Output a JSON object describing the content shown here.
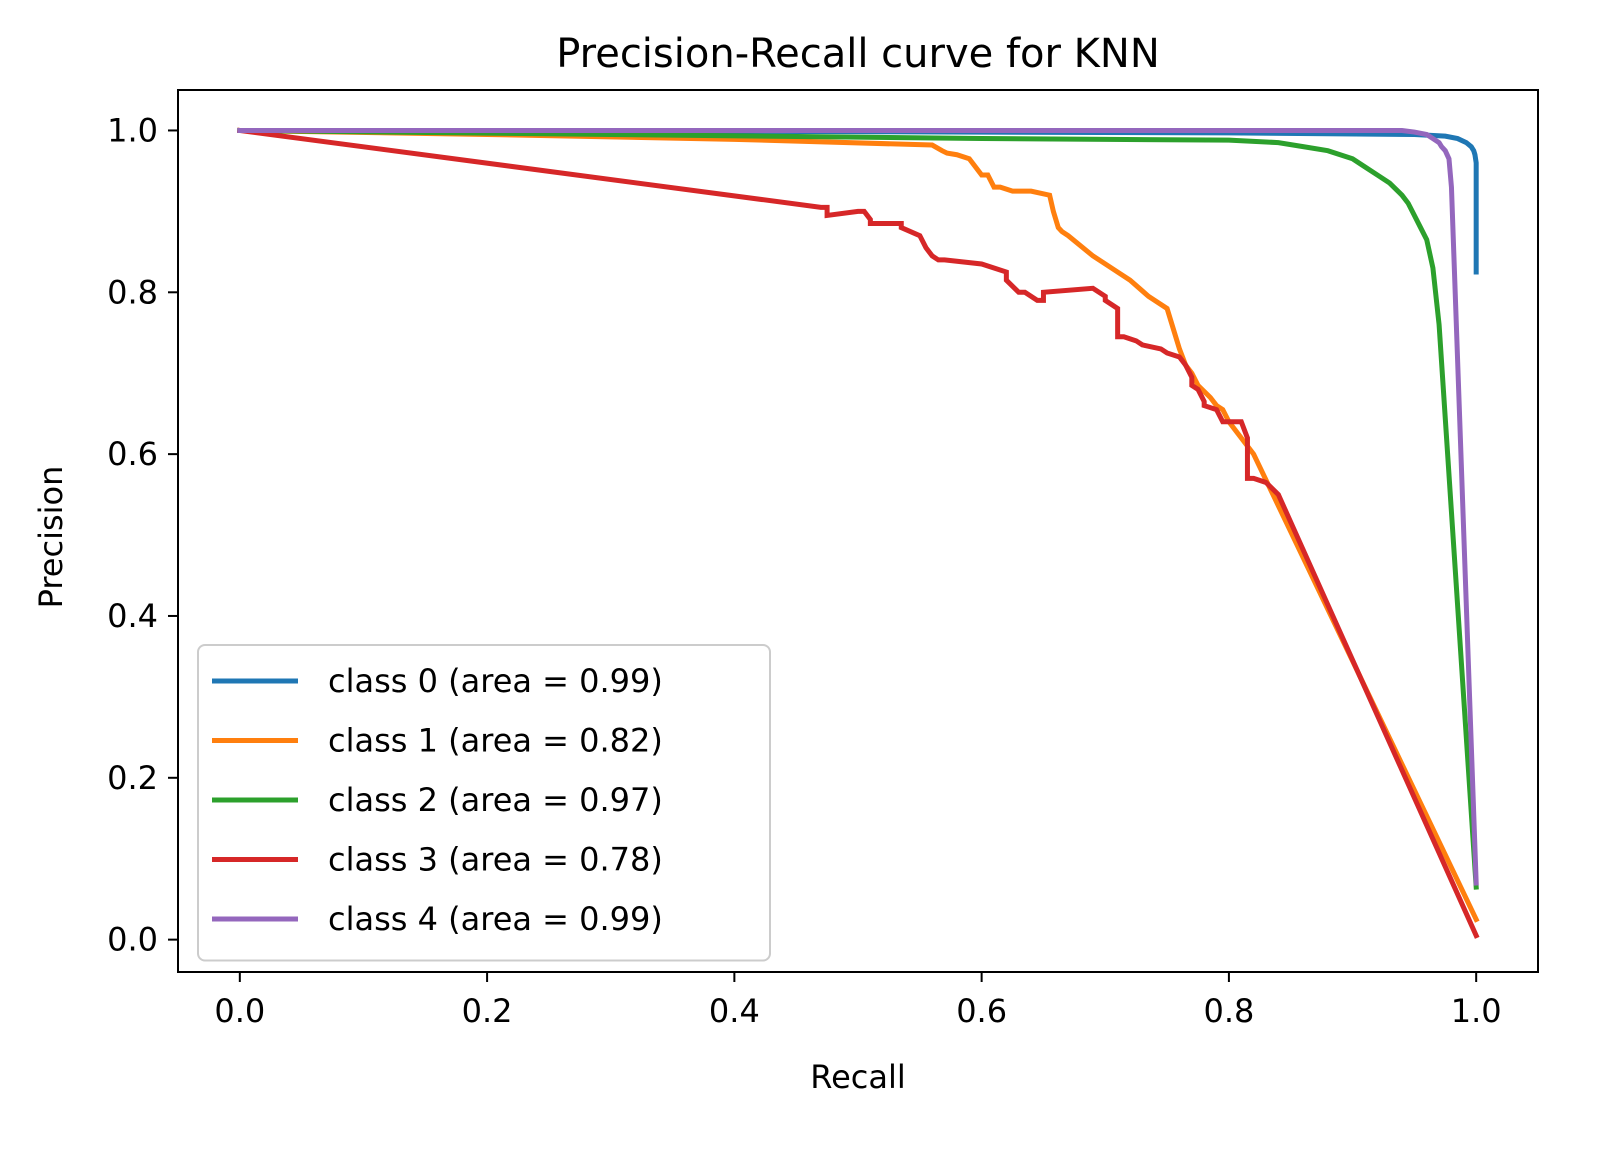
{
  "chart_data": {
    "type": "line",
    "title": "Precision-Recall curve for KNN",
    "xlabel": "Recall",
    "ylabel": "Precision",
    "xlim": [
      -0.05,
      1.05
    ],
    "ylim": [
      -0.04,
      1.05
    ],
    "xticks": [
      0.0,
      0.2,
      0.4,
      0.6,
      0.8,
      1.0
    ],
    "xtick_labels": [
      "0.0",
      "0.2",
      "0.4",
      "0.6",
      "0.8",
      "1.0"
    ],
    "yticks": [
      0.0,
      0.2,
      0.4,
      0.6,
      0.8,
      1.0
    ],
    "ytick_labels": [
      "0.0",
      "0.2",
      "0.4",
      "0.6",
      "0.8",
      "1.0"
    ],
    "grid": false,
    "legend_position": "lower-left",
    "series": [
      {
        "name": "class 0 (area = 0.99)",
        "color": "#1f77b4",
        "x": [
          0.0,
          0.2,
          0.4,
          0.6,
          0.8,
          0.95,
          0.975,
          0.985,
          0.992,
          0.996,
          0.998,
          0.999,
          1.0,
          1.0
        ],
        "y": [
          1.0,
          0.9995,
          0.999,
          0.998,
          0.997,
          0.995,
          0.993,
          0.99,
          0.985,
          0.98,
          0.975,
          0.97,
          0.96,
          0.825
        ]
      },
      {
        "name": "class 1 (area = 0.82)",
        "color": "#ff7f0e",
        "x": [
          0.0,
          0.2,
          0.4,
          0.56,
          0.568,
          0.572,
          0.58,
          0.59,
          0.6,
          0.605,
          0.61,
          0.615,
          0.625,
          0.64,
          0.655,
          0.658,
          0.662,
          0.665,
          0.67,
          0.69,
          0.7,
          0.71,
          0.72,
          0.735,
          0.75,
          0.755,
          0.76,
          0.765,
          0.77,
          0.775,
          0.785,
          0.79,
          0.795,
          0.8,
          0.82,
          1.0
        ],
        "y": [
          1.0,
          0.995,
          0.989,
          0.982,
          0.975,
          0.972,
          0.97,
          0.965,
          0.945,
          0.945,
          0.93,
          0.93,
          0.925,
          0.925,
          0.92,
          0.9,
          0.88,
          0.875,
          0.87,
          0.845,
          0.835,
          0.825,
          0.815,
          0.795,
          0.78,
          0.755,
          0.73,
          0.71,
          0.7,
          0.685,
          0.67,
          0.66,
          0.655,
          0.64,
          0.6,
          0.025
        ]
      },
      {
        "name": "class 2 (area = 0.97)",
        "color": "#2ca02c",
        "x": [
          0.0,
          0.3,
          0.6,
          0.8,
          0.84,
          0.86,
          0.88,
          0.9,
          0.91,
          0.92,
          0.93,
          0.94,
          0.945,
          0.95,
          0.955,
          0.96,
          0.965,
          0.97,
          1.0
        ],
        "y": [
          1.0,
          0.995,
          0.99,
          0.988,
          0.985,
          0.98,
          0.975,
          0.965,
          0.955,
          0.945,
          0.935,
          0.92,
          0.91,
          0.895,
          0.88,
          0.865,
          0.83,
          0.76,
          0.065
        ]
      },
      {
        "name": "class 3 (area = 0.78)",
        "color": "#d62728",
        "x": [
          0.0,
          0.47,
          0.475,
          0.475,
          0.5,
          0.505,
          0.51,
          0.51,
          0.535,
          0.535,
          0.55,
          0.555,
          0.56,
          0.565,
          0.57,
          0.6,
          0.61,
          0.62,
          0.62,
          0.63,
          0.635,
          0.645,
          0.65,
          0.65,
          0.69,
          0.7,
          0.7,
          0.71,
          0.71,
          0.715,
          0.725,
          0.73,
          0.745,
          0.75,
          0.76,
          0.765,
          0.77,
          0.77,
          0.775,
          0.78,
          0.78,
          0.79,
          0.795,
          0.8,
          0.81,
          0.815,
          0.815,
          0.82,
          0.83,
          0.84,
          1.0
        ],
        "y": [
          1.0,
          0.905,
          0.905,
          0.895,
          0.9,
          0.9,
          0.89,
          0.885,
          0.885,
          0.88,
          0.87,
          0.855,
          0.845,
          0.84,
          0.84,
          0.835,
          0.83,
          0.825,
          0.815,
          0.8,
          0.8,
          0.79,
          0.79,
          0.8,
          0.805,
          0.795,
          0.79,
          0.78,
          0.745,
          0.745,
          0.74,
          0.735,
          0.73,
          0.725,
          0.72,
          0.71,
          0.695,
          0.685,
          0.68,
          0.665,
          0.66,
          0.655,
          0.64,
          0.64,
          0.64,
          0.62,
          0.57,
          0.57,
          0.565,
          0.55,
          0.005
        ]
      },
      {
        "name": "class 4 (area = 0.99)",
        "color": "#9467bd",
        "x": [
          0.0,
          0.3,
          0.6,
          0.9,
          0.94,
          0.95,
          0.96,
          0.965,
          0.97,
          0.972,
          0.975,
          0.978,
          0.98,
          1.0
        ],
        "y": [
          1.0,
          1.0,
          1.0,
          1.0,
          1.0,
          0.998,
          0.995,
          0.99,
          0.985,
          0.98,
          0.975,
          0.965,
          0.93,
          0.07
        ]
      }
    ]
  }
}
